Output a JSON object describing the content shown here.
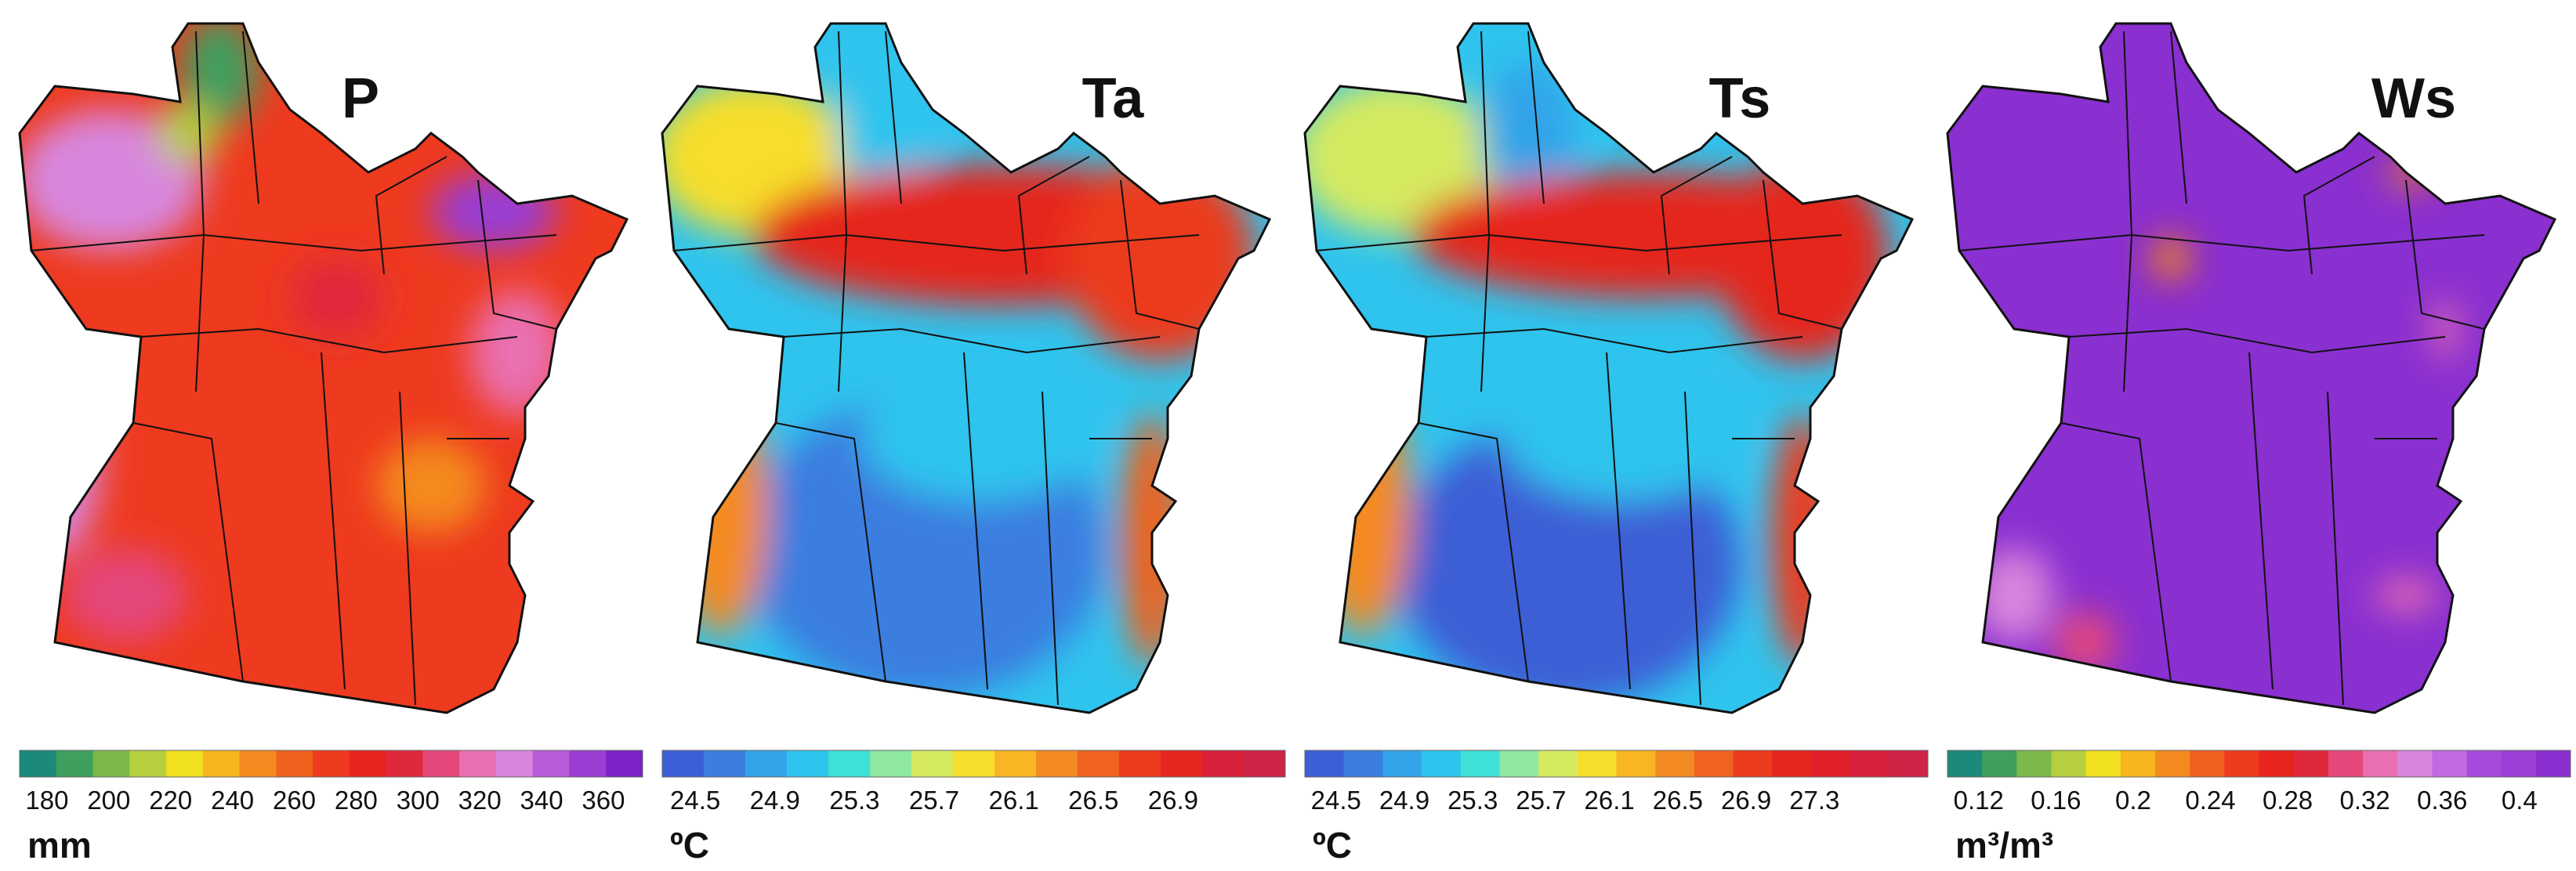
{
  "panels": [
    {
      "title": "P",
      "unit": "mm",
      "ticks": [
        180,
        200,
        220,
        240,
        260,
        280,
        300,
        320,
        340,
        360
      ],
      "colors": [
        "#1b8a7a",
        "#3f9f5f",
        "#7cb84a",
        "#b5cf3e",
        "#f0e020",
        "#f7b51e",
        "#f48a1f",
        "#f0611e",
        "#ee3a1f",
        "#e8241f",
        "#e0283c",
        "#e4477a",
        "#ea6fb0",
        "#d886dd",
        "#b85bd8",
        "#9a3ed3",
        "#7b22c8"
      ]
    },
    {
      "title": "Ta",
      "unit": "ºC",
      "ticks": [
        24.5,
        24.9,
        25.3,
        25.7,
        26.1,
        26.5,
        26.9
      ],
      "colors": [
        "#3c5fd6",
        "#3b7ee0",
        "#33a4ea",
        "#2fc4ee",
        "#3fe0d8",
        "#8ee8a0",
        "#d5ea60",
        "#f6de2c",
        "#f8b624",
        "#f48a22",
        "#f0621f",
        "#ec3a1e",
        "#e5261f",
        "#d8203a",
        "#cc2347"
      ]
    },
    {
      "title": "Ts",
      "unit": "ºC",
      "ticks": [
        24.5,
        24.9,
        25.3,
        25.7,
        26.1,
        26.5,
        26.9,
        27.3
      ],
      "colors": [
        "#3c5fd6",
        "#3b7ee0",
        "#33a4ea",
        "#2fc4ee",
        "#3fe0d8",
        "#8ee8a0",
        "#d5ea60",
        "#f6de2c",
        "#f8b624",
        "#f48a22",
        "#f0621f",
        "#ec3a1e",
        "#e5261f",
        "#e0202a",
        "#d8203a",
        "#cc2347"
      ]
    },
    {
      "title": "Ws",
      "unit": "m³/m³",
      "ticks": [
        0.12,
        0.16,
        0.2,
        0.24,
        0.28,
        0.32,
        0.36,
        0.4
      ],
      "colors": [
        "#1b8a7a",
        "#3f9f5f",
        "#7cb84a",
        "#b5cf3e",
        "#f0e020",
        "#f7b51e",
        "#f48a1f",
        "#f0611e",
        "#ee3a1f",
        "#e8241f",
        "#e0283c",
        "#e4477a",
        "#ea6fb0",
        "#d886dd",
        "#c06ae0",
        "#a74adb",
        "#9b3fd6",
        "#8a2fd0"
      ]
    }
  ]
}
